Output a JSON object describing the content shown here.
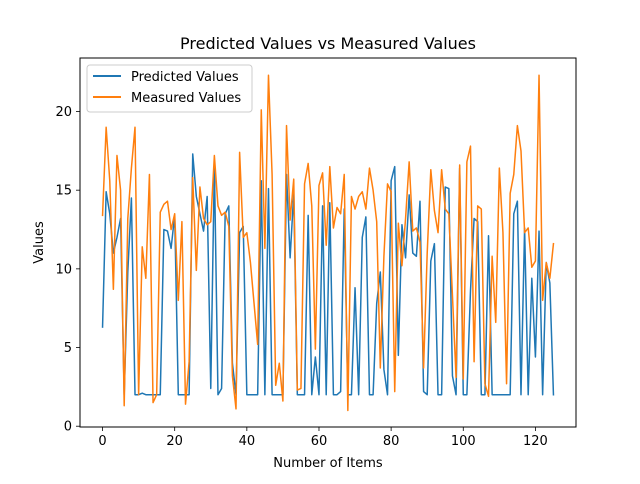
{
  "chart_data": {
    "type": "line",
    "title": "Predicted Values vs Measured Values",
    "xlabel": "Number of Items",
    "ylabel": "Values",
    "xlim": [
      -6.25,
      131.25
    ],
    "ylim": [
      -0.05,
      23.4
    ],
    "xticks": [
      0,
      20,
      40,
      60,
      80,
      100,
      120
    ],
    "yticks": [
      0,
      5,
      10,
      15,
      20
    ],
    "grid": false,
    "legend_position": "upper-left",
    "series": [
      {
        "name": "Predicted Values",
        "color": "#1f77b4",
        "values": [
          6.3,
          14.9,
          13.5,
          11.0,
          12.0,
          13.2,
          2.0,
          9.8,
          14.5,
          2.0,
          2.0,
          2.1,
          2.0,
          2.0,
          2.0,
          2.0,
          2.0,
          12.5,
          12.4,
          11.3,
          13.4,
          2.0,
          2.0,
          2.0,
          2.0,
          17.3,
          14.6,
          13.5,
          12.4,
          14.6,
          2.4,
          16.6,
          2.0,
          2.4,
          13.5,
          14.0,
          4.0,
          2.0,
          12.3,
          12.7,
          2.0,
          2.0,
          2.0,
          2.0,
          15.6,
          2.0,
          15.1,
          2.0,
          2.0,
          2.0,
          2.0,
          16.0,
          10.7,
          14.8,
          2.0,
          2.0,
          2.0,
          13.4,
          2.0,
          4.4,
          2.0,
          14.0,
          2.0,
          14.2,
          2.0,
          2.0,
          2.2,
          13.8,
          2.0,
          2.0,
          8.8,
          2.0,
          12.0,
          13.3,
          2.0,
          2.0,
          7.8,
          9.8,
          3.6,
          2.0,
          15.6,
          16.5,
          4.5,
          12.8,
          10.7,
          14.7,
          11.0,
          10.8,
          14.3,
          2.2,
          2.0,
          10.5,
          11.6,
          2.0,
          2.0,
          15.2,
          15.1,
          3.2,
          2.0,
          16.4,
          2.0,
          2.0,
          8.6,
          13.2,
          13.0,
          2.0,
          2.0,
          12.1,
          2.0,
          2.0,
          2.0,
          2.0,
          2.0,
          2.0,
          13.5,
          14.3,
          2.0,
          12.6,
          2.0,
          9.4,
          4.4,
          12.4,
          2.0,
          10.4,
          9.1,
          2.0
        ]
      },
      {
        "name": "Measured Values",
        "color": "#ff7f0e",
        "values": [
          13.4,
          19.0,
          15.6,
          8.7,
          17.2,
          15.0,
          1.3,
          13.2,
          16.4,
          19.0,
          2.0,
          11.4,
          9.4,
          16.0,
          1.5,
          2.0,
          13.6,
          14.1,
          14.3,
          12.5,
          13.5,
          8.0,
          13.0,
          1.4,
          4.1,
          15.8,
          9.9,
          15.2,
          13.2,
          12.8,
          13.0,
          17.2,
          14.0,
          13.4,
          13.6,
          12.7,
          3.2,
          1.1,
          17.4,
          12.0,
          12.3,
          10.4,
          7.8,
          5.2,
          20.1,
          11.3,
          22.3,
          16.0,
          2.6,
          4.0,
          1.6,
          19.1,
          13.1,
          15.7,
          2.3,
          2.4,
          15.4,
          16.7,
          14.0,
          4.9,
          15.3,
          16.1,
          11.5,
          16.5,
          12.6,
          13.9,
          13.5,
          16.0,
          1.0,
          14.6,
          13.8,
          14.6,
          14.9,
          13.8,
          16.4,
          15.0,
          13.0,
          3.7,
          10.8,
          15.4,
          14.9,
          2.2,
          12.9,
          10.2,
          13.2,
          16.8,
          12.4,
          12.6,
          11.7,
          3.7,
          11.0,
          16.3,
          13.7,
          12.3,
          16.3,
          13.8,
          13.5,
          8.3,
          3.1,
          16.6,
          3.0,
          16.8,
          17.8,
          4.1,
          14.0,
          13.8,
          2.7,
          1.9,
          10.8,
          6.6,
          16.4,
          12.3,
          2.7,
          14.8,
          16.0,
          19.1,
          17.5,
          12.3,
          12.6,
          10.1,
          10.5,
          22.3,
          8.0,
          10.4,
          9.4,
          11.6
        ]
      }
    ]
  }
}
